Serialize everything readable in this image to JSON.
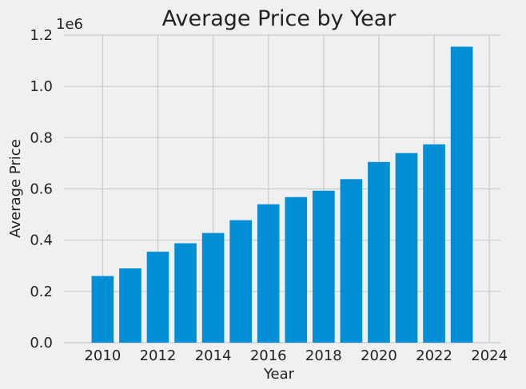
{
  "chart_data": {
    "type": "bar",
    "title": "Average  Price by Year",
    "xlabel": "Year",
    "ylabel": "Average Price",
    "y_offset_label": "1e6",
    "x": [
      2010,
      2011,
      2012,
      2013,
      2014,
      2015,
      2016,
      2017,
      2018,
      2019,
      2020,
      2021,
      2022,
      2023
    ],
    "values": [
      260000,
      290000,
      355000,
      388000,
      428000,
      478000,
      540000,
      568000,
      593000,
      638000,
      705000,
      740000,
      774000,
      1155000
    ],
    "xlim": [
      2008.6,
      2024.4
    ],
    "ylim": [
      0,
      1.2
    ],
    "x_ticks": [
      "2010",
      "2012",
      "2014",
      "2016",
      "2018",
      "2020",
      "2022",
      "2024"
    ],
    "y_ticks": [
      "0.0",
      "0.2",
      "0.4",
      "0.6",
      "0.8",
      "1.0",
      "1.2"
    ],
    "grid": true,
    "colors": {
      "bar": "#008fd5",
      "background": "#f0f0f0",
      "grid": "#cbcbcb"
    }
  }
}
